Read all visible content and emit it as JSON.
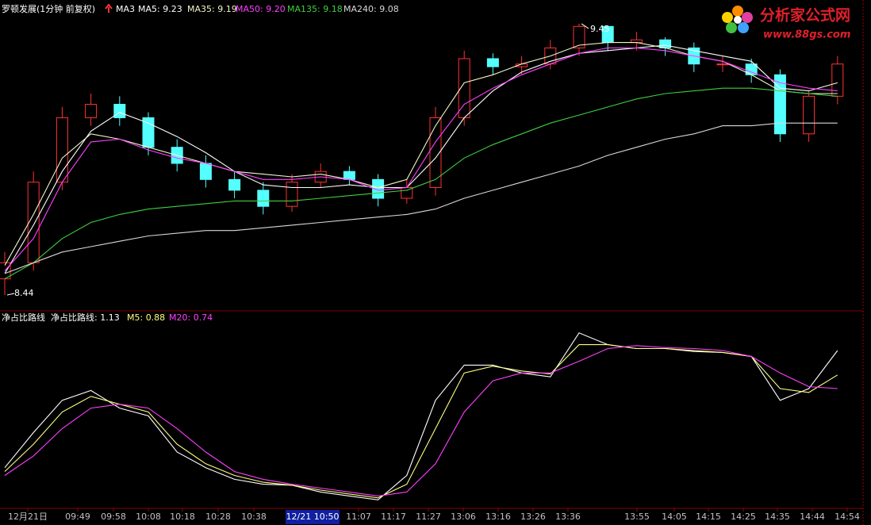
{
  "chart_data": [
    {
      "type": "candlestick",
      "title": "罗顿发展(1分钟 前复权)",
      "indicator_label": "MA3",
      "logo": "分析家公式网",
      "logo_url": "www.88gs.com",
      "candles": {
        "open": [
          8.5,
          8.56,
          8.86,
          9.1,
          9.15,
          9.1,
          8.99,
          8.93,
          8.87,
          8.83,
          8.77,
          8.86,
          8.9,
          8.87,
          8.8,
          8.84,
          9.1,
          9.32,
          9.29,
          9.3,
          9.36,
          9.44,
          9.38,
          9.39,
          9.36,
          9.3,
          9.3,
          9.26,
          9.04,
          9.18
        ],
        "high": [
          8.6,
          8.9,
          9.14,
          9.19,
          9.18,
          9.12,
          9.02,
          8.96,
          8.9,
          8.86,
          8.89,
          8.93,
          8.92,
          8.89,
          8.87,
          9.14,
          9.35,
          9.34,
          9.33,
          9.39,
          9.45,
          9.43,
          9.42,
          9.4,
          9.38,
          9.33,
          9.32,
          9.28,
          9.2,
          9.33
        ],
        "low": [
          8.44,
          8.53,
          8.83,
          9.07,
          9.07,
          8.96,
          8.9,
          8.84,
          8.8,
          8.74,
          8.75,
          8.84,
          8.85,
          8.77,
          8.78,
          8.81,
          9.07,
          9.26,
          9.26,
          9.28,
          9.33,
          9.35,
          9.35,
          9.33,
          9.27,
          9.27,
          9.23,
          9.01,
          9.01,
          9.15
        ],
        "close": [
          8.56,
          8.86,
          9.1,
          9.15,
          9.1,
          8.99,
          8.93,
          8.87,
          8.83,
          8.77,
          8.86,
          8.9,
          8.87,
          8.8,
          8.84,
          9.1,
          9.32,
          9.29,
          9.3,
          9.36,
          9.44,
          9.38,
          9.39,
          9.36,
          9.3,
          9.3,
          9.26,
          9.04,
          9.18,
          9.3
        ]
      },
      "up_color": "#ff3232",
      "down_color": "#54ffff",
      "series": [
        {
          "name": "MA5: 9.23",
          "color": "#ffffff",
          "values": [
            8.52,
            8.7,
            8.9,
            9.05,
            9.12,
            9.08,
            9.03,
            8.97,
            8.9,
            8.85,
            8.84,
            8.84,
            8.85,
            8.84,
            8.84,
            8.95,
            9.1,
            9.2,
            9.27,
            9.31,
            9.34,
            9.35,
            9.36,
            9.37,
            9.35,
            9.33,
            9.31,
            9.21,
            9.2,
            9.23
          ]
        },
        {
          "name": "MA35: 9.19",
          "color": "#f4f4cc",
          "values": [
            8.55,
            8.74,
            8.95,
            9.04,
            9.02,
            8.99,
            8.96,
            8.93,
            8.9,
            8.89,
            8.88,
            8.89,
            8.87,
            8.84,
            8.87,
            9.07,
            9.23,
            9.26,
            9.3,
            9.33,
            9.37,
            9.38,
            9.38,
            9.36,
            9.33,
            9.31,
            9.26,
            9.2,
            9.19,
            9.19
          ]
        },
        {
          "name": "MA50: 9.20",
          "color": "#ff40ff",
          "values": [
            8.53,
            8.65,
            8.86,
            9.01,
            9.02,
            8.98,
            8.95,
            8.93,
            8.9,
            8.87,
            8.87,
            8.88,
            8.87,
            8.83,
            8.84,
            9.01,
            9.15,
            9.21,
            9.26,
            9.3,
            9.34,
            9.36,
            9.36,
            9.35,
            9.33,
            9.31,
            9.27,
            9.23,
            9.21,
            9.2
          ]
        },
        {
          "name": "MA135: 9.18",
          "color": "#3fcf3f",
          "values": [
            8.5,
            8.56,
            8.65,
            8.71,
            8.74,
            8.76,
            8.77,
            8.78,
            8.79,
            8.79,
            8.79,
            8.8,
            8.81,
            8.82,
            8.83,
            8.87,
            8.95,
            9.0,
            9.04,
            9.08,
            9.11,
            9.14,
            9.17,
            9.19,
            9.2,
            9.21,
            9.21,
            9.2,
            9.19,
            9.18
          ]
        },
        {
          "name": "MA240: 9.08",
          "color": "#d8d8d8",
          "values": [
            8.52,
            8.56,
            8.6,
            8.62,
            8.64,
            8.66,
            8.67,
            8.68,
            8.68,
            8.69,
            8.7,
            8.71,
            8.72,
            8.73,
            8.74,
            8.76,
            8.8,
            8.83,
            8.86,
            8.89,
            8.92,
            8.96,
            8.99,
            9.02,
            9.04,
            9.07,
            9.07,
            9.08,
            9.08,
            9.08
          ]
        }
      ],
      "ylim": [
        8.4,
        9.5
      ]
    },
    {
      "type": "line",
      "title": "净占比路线",
      "series": [
        {
          "name": "净占比路线: 1.13",
          "color": "#ffffff",
          "values": [
            -0.07,
            0.29,
            0.62,
            0.72,
            0.54,
            0.46,
            0.09,
            -0.07,
            -0.19,
            -0.24,
            -0.25,
            -0.32,
            -0.36,
            -0.4,
            -0.15,
            0.62,
            0.98,
            0.98,
            0.9,
            0.86,
            1.31,
            1.19,
            1.15,
            1.15,
            1.12,
            1.11,
            1.07,
            0.62,
            0.74,
            1.13
          ]
        },
        {
          "name": "M5: 0.88",
          "color": "#ffff80",
          "values": [
            -0.11,
            0.17,
            0.5,
            0.66,
            0.58,
            0.5,
            0.17,
            -0.03,
            -0.15,
            -0.22,
            -0.25,
            -0.3,
            -0.34,
            -0.38,
            -0.24,
            0.33,
            0.9,
            0.97,
            0.92,
            0.89,
            1.19,
            1.19,
            1.15,
            1.15,
            1.13,
            1.11,
            1.07,
            0.74,
            0.7,
            0.88
          ]
        },
        {
          "name": "M20: 0.74",
          "color": "#ff40ff",
          "values": [
            -0.15,
            0.05,
            0.33,
            0.54,
            0.58,
            0.54,
            0.33,
            0.09,
            -0.11,
            -0.19,
            -0.24,
            -0.28,
            -0.32,
            -0.36,
            -0.32,
            -0.03,
            0.5,
            0.82,
            0.9,
            0.9,
            1.02,
            1.15,
            1.18,
            1.16,
            1.15,
            1.13,
            1.07,
            0.9,
            0.76,
            0.74
          ]
        }
      ],
      "ylim": [
        -0.5,
        1.45
      ],
      "x_labels": [
        "12月21日",
        "09:49",
        "09:58",
        "10:08",
        "10:18",
        "10:28",
        "10:38",
        "11:07",
        "11:17",
        "11:27",
        "13:06",
        "13:16",
        "13:26",
        "13:36",
        "13:55",
        "14:05",
        "14:15",
        "14:25",
        "14:35",
        "14:44",
        "14:54"
      ],
      "cursor_label": "12/21 10:50"
    }
  ]
}
